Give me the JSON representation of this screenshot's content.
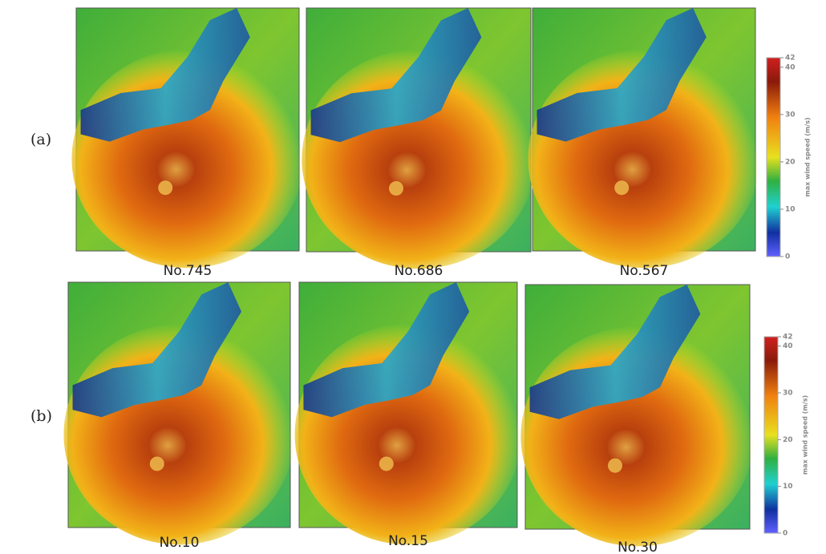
{
  "rows": [
    {
      "label": "(a)",
      "panels": [
        "No.745",
        "No.686",
        "No.567"
      ]
    },
    {
      "label": "(b)",
      "panels": [
        "No.10",
        "No.15",
        "No.30"
      ]
    }
  ],
  "colorbar": {
    "title": "max wind speed (m/s)",
    "ticks": [
      "42",
      "40",
      "30",
      "20",
      "10",
      "0"
    ]
  }
}
